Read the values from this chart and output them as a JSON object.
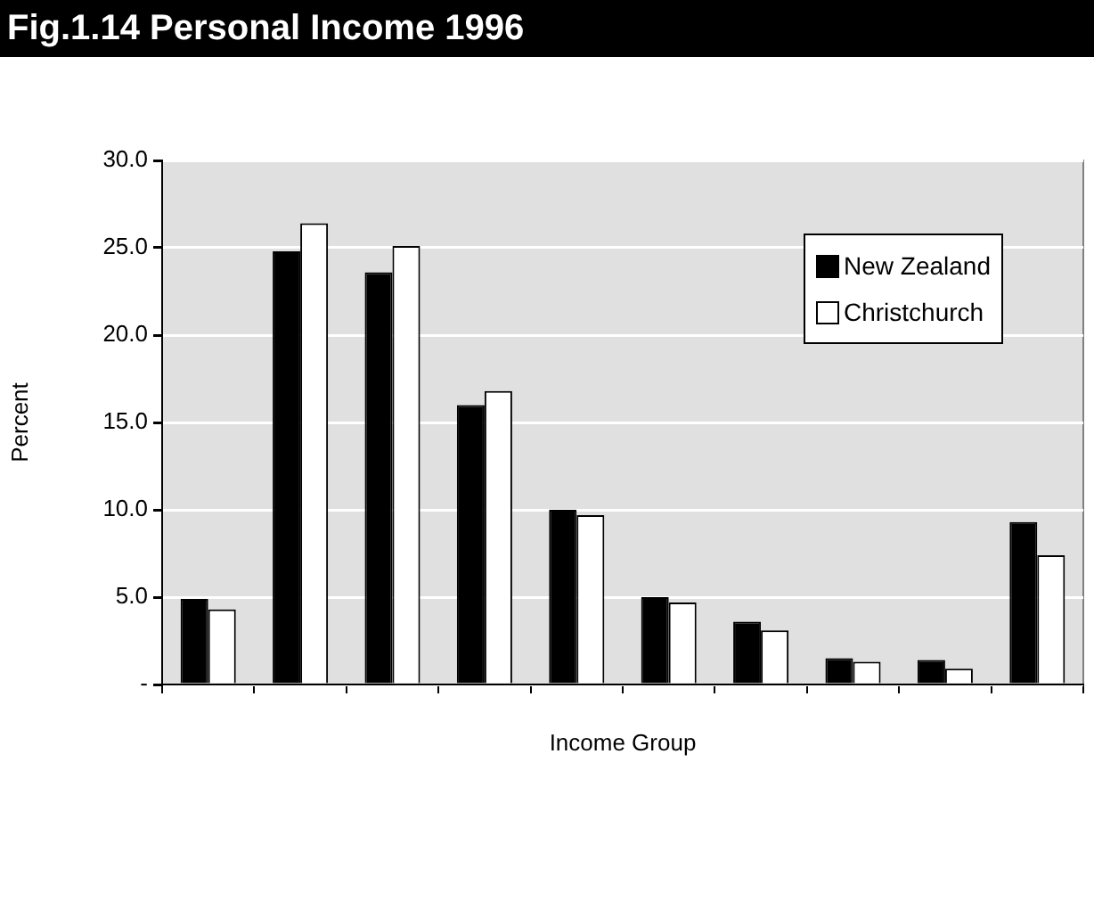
{
  "chart_data": {
    "type": "bar",
    "title": "Fig.1.14  Personal Income 1996",
    "xlabel": "Income Group",
    "ylabel": "Percent",
    "categories": [
      null,
      null,
      null,
      null,
      null,
      null,
      null,
      null,
      null,
      null
    ],
    "series": [
      {
        "name": "New Zealand",
        "color": "#000000",
        "values": [
          4.9,
          24.8,
          23.6,
          16.0,
          10.0,
          5.0,
          3.6,
          1.5,
          1.4,
          9.3
        ]
      },
      {
        "name": "Christchurch",
        "color": "#ffffff",
        "values": [
          4.3,
          26.4,
          25.1,
          16.8,
          9.7,
          4.7,
          3.1,
          1.3,
          0.9,
          7.4
        ]
      }
    ],
    "ylim": [
      0,
      30
    ],
    "yticks": [
      {
        "value": 0,
        "label": "-"
      },
      {
        "value": 5,
        "label": "5.0"
      },
      {
        "value": 10,
        "label": "10.0"
      },
      {
        "value": 15,
        "label": "15.0"
      },
      {
        "value": 20,
        "label": "20.0"
      },
      {
        "value": 25,
        "label": "25.0"
      },
      {
        "value": 30,
        "label": "30.0"
      }
    ],
    "grid": "y",
    "legend": "top right"
  }
}
